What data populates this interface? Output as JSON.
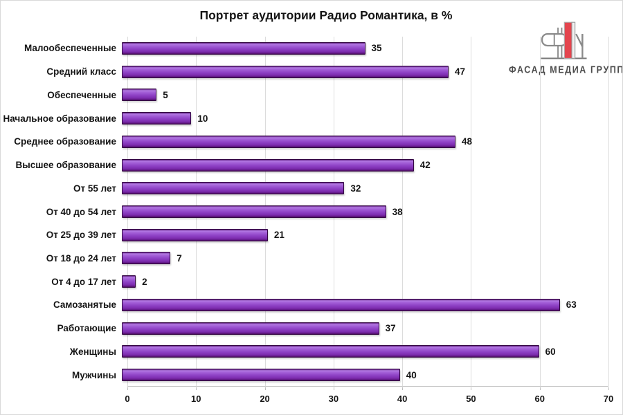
{
  "title": "Портрет аудитории Радио Романтика, в %",
  "logo": {
    "text": "ФАСАД МЕДИА ГРУПП",
    "accent_color": "#e4454e",
    "outline_color": "#8a8a8a"
  },
  "chart_data": {
    "type": "bar",
    "orientation": "horizontal",
    "title": "Портрет аудитории Радио Романтика, в %",
    "categories": [
      "Малообеспеченные",
      "Средний класс",
      "Обеспеченные",
      "Начальное образование",
      "Среднее образование",
      "Высшее образование",
      "От 55 лет",
      "От 40 до 54 лет",
      "От 25 до 39 лет",
      "От 18 до 24 лет",
      "От 4 до 17 лет",
      "Самозанятые",
      "Работающие",
      "Женщины",
      "Мужчины"
    ],
    "values": [
      35,
      47,
      5,
      10,
      48,
      42,
      32,
      38,
      21,
      7,
      2,
      63,
      37,
      60,
      40
    ],
    "xlabel": "",
    "ylabel": "",
    "xlim": [
      0,
      70
    ],
    "x_ticks": [
      0,
      10,
      20,
      30,
      40,
      50,
      60,
      70
    ],
    "grid": true,
    "data_labels": true,
    "legend": false,
    "bar_color": "#8e41c5",
    "bar_highlight": "#b279e2",
    "bar_border": "#330742",
    "gridline_color": "#dcdcdc",
    "axis_line_color": "#bfbfbf",
    "text_color": "#151515"
  }
}
